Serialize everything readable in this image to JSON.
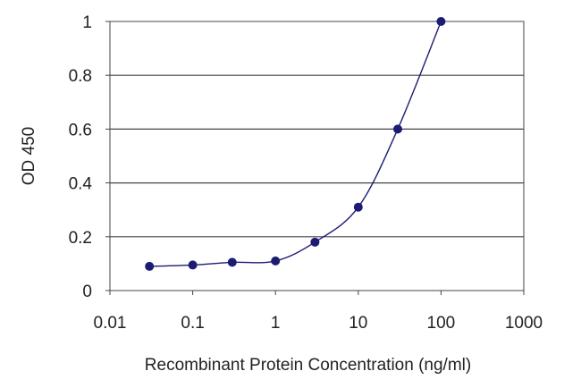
{
  "chart_data": {
    "type": "scatter",
    "title": "",
    "xlabel": "Recombinant Protein Concentration (ng/ml)",
    "ylabel": "OD 450",
    "x_scale": "log",
    "xlim": [
      0.01,
      1000
    ],
    "ylim": [
      0,
      1
    ],
    "x_ticks": [
      0.01,
      0.1,
      1,
      10,
      100,
      1000
    ],
    "x_tick_labels": [
      "0.01",
      "0.1",
      "1",
      "10",
      "100",
      "1000"
    ],
    "y_ticks": [
      0,
      0.2,
      0.4,
      0.6,
      0.8,
      1
    ],
    "y_tick_labels": [
      "0",
      "0.2",
      "0.4",
      "0.6",
      "0.8",
      "1"
    ],
    "grid": "horizontal",
    "series": [
      {
        "x": [
          0.03,
          0.1,
          0.3,
          1,
          3,
          10,
          30,
          100
        ],
        "y": [
          0.09,
          0.095,
          0.105,
          0.11,
          0.18,
          0.31,
          0.6,
          1.0
        ],
        "color": "#1c1c74",
        "smooth_curve": true
      }
    ]
  }
}
